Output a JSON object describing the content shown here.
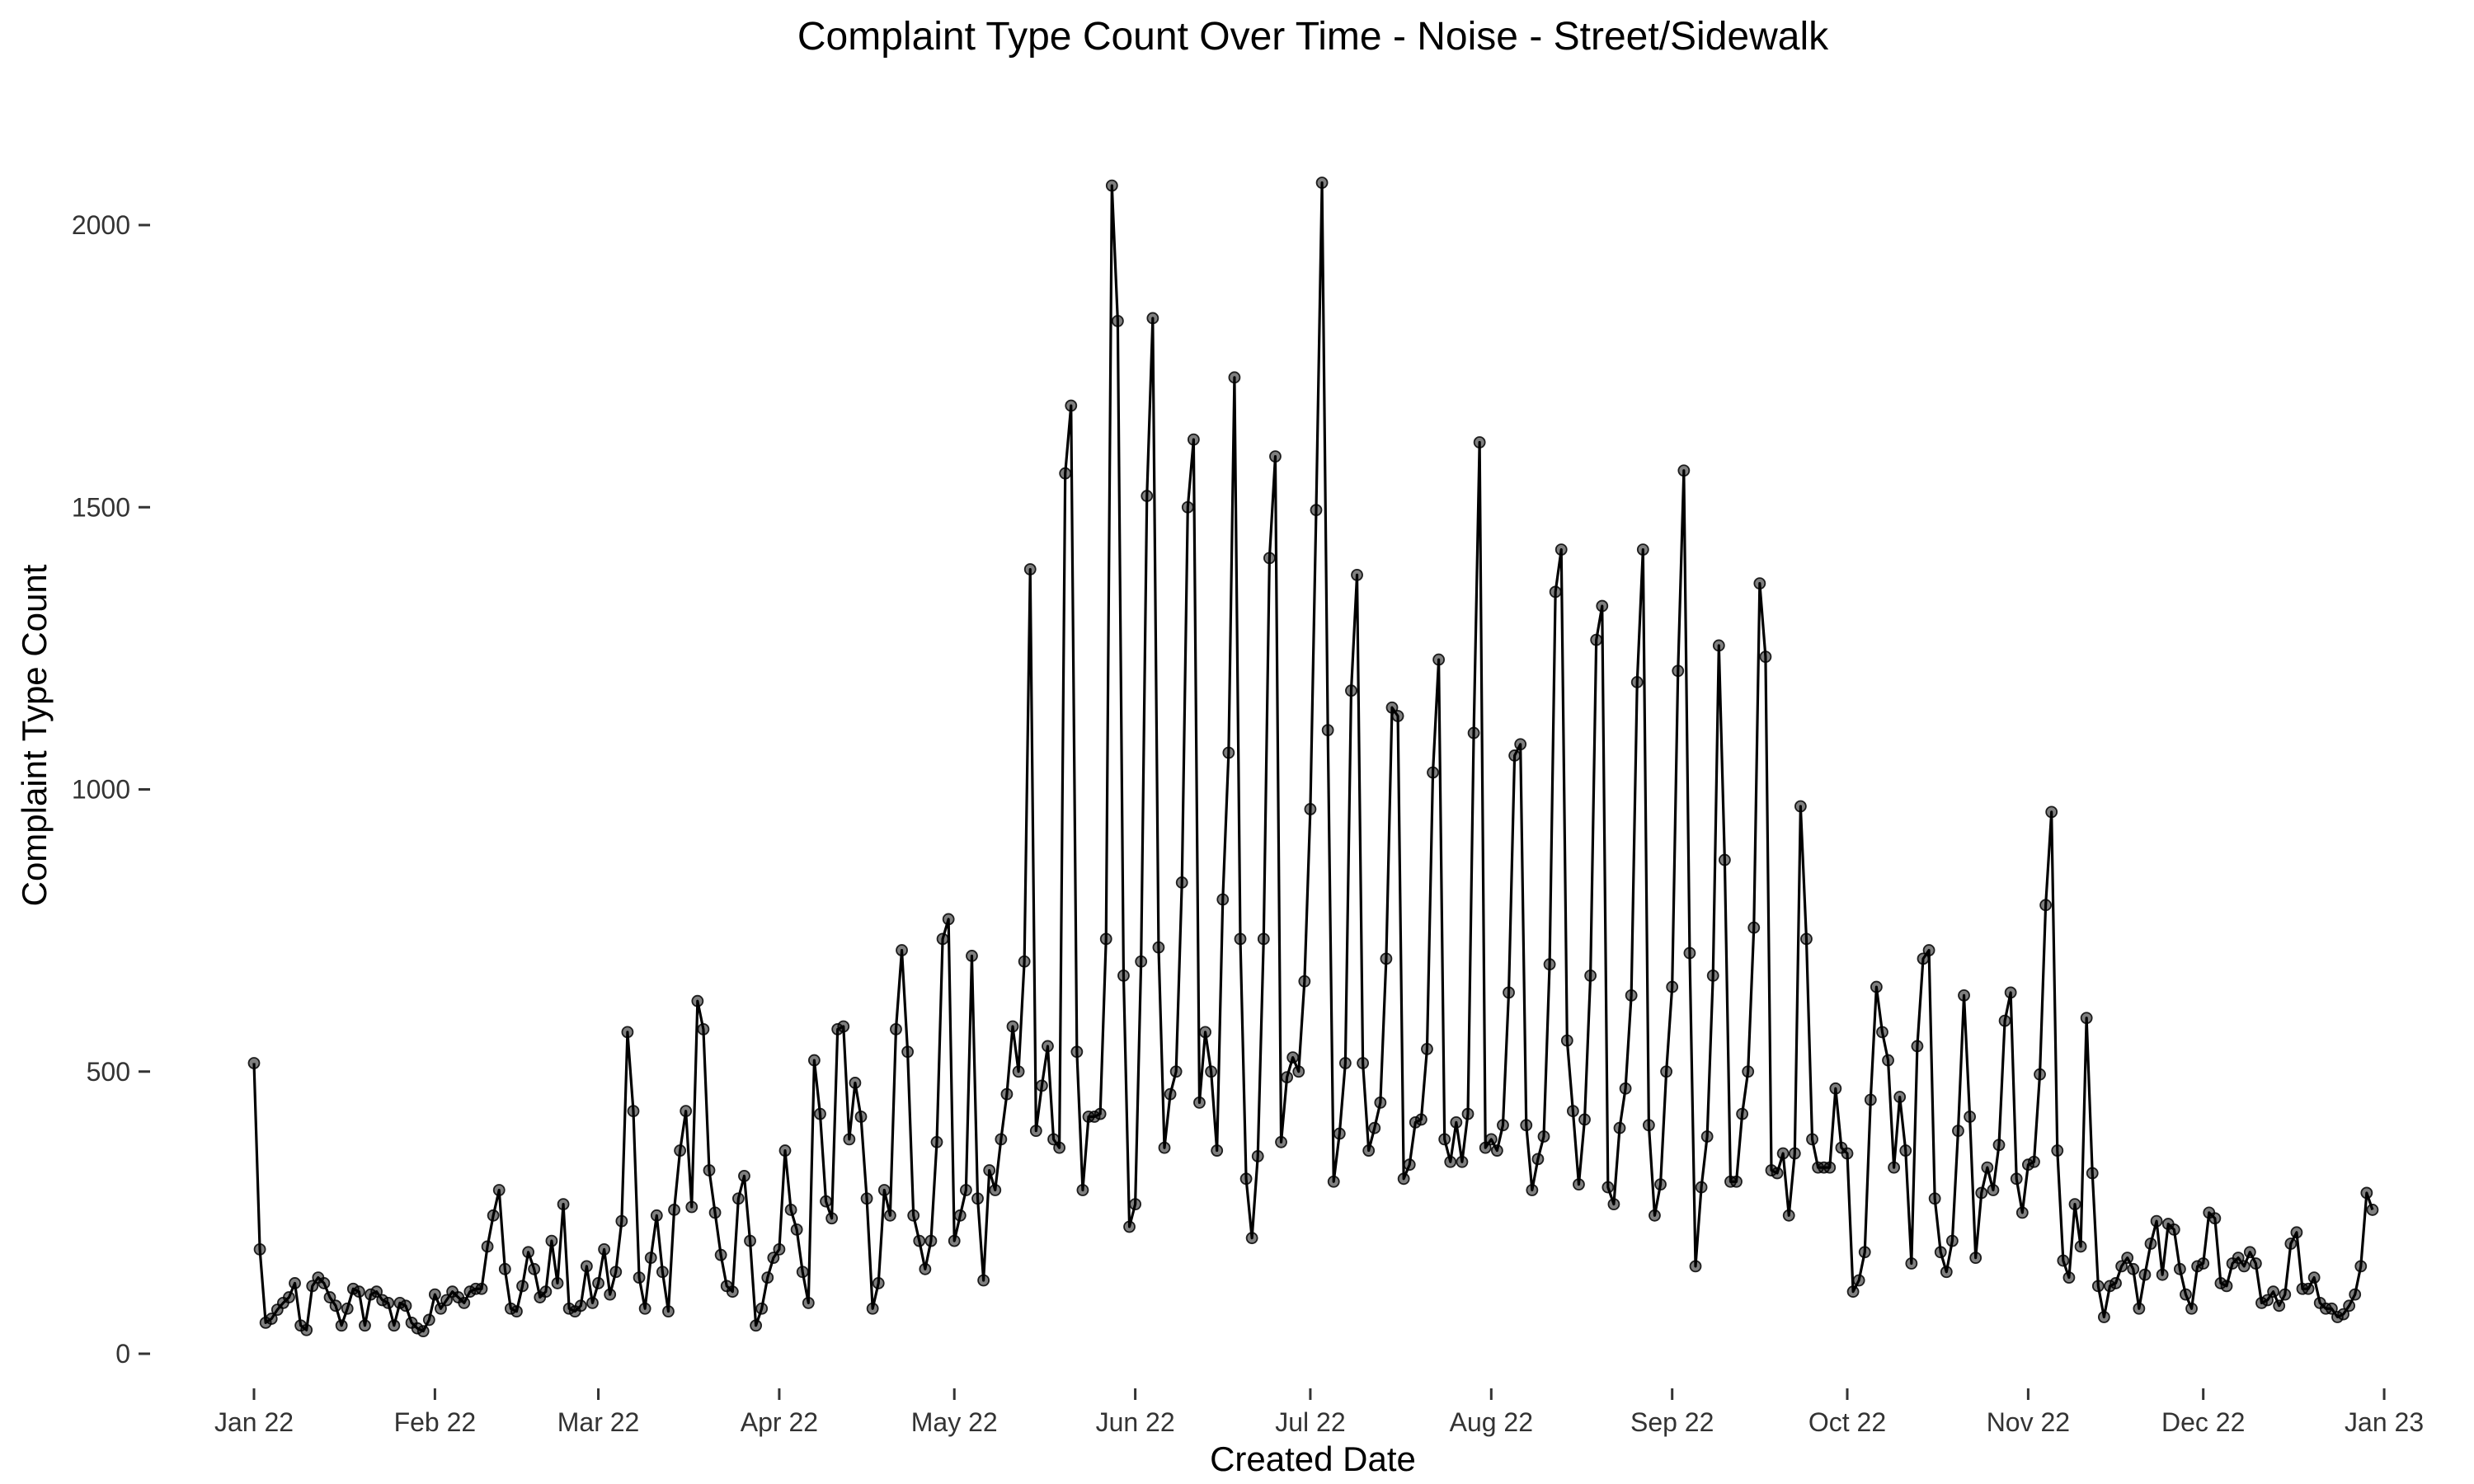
{
  "chart_data": {
    "type": "line",
    "title": "Complaint Type Count Over Time - Noise - Street/Sidewalk",
    "xlabel": "Created Date",
    "ylabel": "Complaint Type Count",
    "xlim": [
      "2022-01-01",
      "2022-12-31"
    ],
    "ylim": [
      0,
      2100
    ],
    "grid": false,
    "legend": "none",
    "colors": {
      "line": "#000000",
      "point": "#555555"
    },
    "x_ticks": [
      {
        "date": "2022-01-01",
        "label": "Jan 22"
      },
      {
        "date": "2022-02-01",
        "label": "Feb 22"
      },
      {
        "date": "2022-03-01",
        "label": "Mar 22"
      },
      {
        "date": "2022-04-01",
        "label": "Apr 22"
      },
      {
        "date": "2022-05-01",
        "label": "May 22"
      },
      {
        "date": "2022-06-01",
        "label": "Jun 22"
      },
      {
        "date": "2022-07-01",
        "label": "Jul 22"
      },
      {
        "date": "2022-08-01",
        "label": "Aug 22"
      },
      {
        "date": "2022-09-01",
        "label": "Sep 22"
      },
      {
        "date": "2022-10-01",
        "label": "Oct 22"
      },
      {
        "date": "2022-11-01",
        "label": "Nov 22"
      },
      {
        "date": "2022-12-01",
        "label": "Dec 22"
      },
      {
        "date": "2023-01-01",
        "label": "Jan 23"
      }
    ],
    "y_ticks": [
      {
        "value": 0,
        "label": "0"
      },
      {
        "value": 500,
        "label": "500"
      },
      {
        "value": 1000,
        "label": "1000"
      },
      {
        "value": 1500,
        "label": "1500"
      },
      {
        "value": 2000,
        "label": "2000"
      }
    ],
    "x_start": "2022-01-01",
    "x_step": "1 day",
    "values": [
      515,
      185,
      55,
      62,
      78,
      90,
      100,
      125,
      50,
      42,
      120,
      135,
      125,
      100,
      85,
      50,
      80,
      115,
      110,
      50,
      105,
      110,
      95,
      90,
      50,
      90,
      85,
      55,
      45,
      40,
      60,
      105,
      80,
      95,
      110,
      100,
      90,
      110,
      115,
      115,
      190,
      245,
      290,
      150,
      80,
      75,
      120,
      180,
      150,
      100,
      110,
      200,
      125,
      265,
      80,
      75,
      85,
      155,
      90,
      125,
      185,
      105,
      145,
      235,
      570,
      430,
      135,
      80,
      170,
      245,
      145,
      75,
      255,
      360,
      430,
      260,
      625,
      575,
      325,
      250,
      175,
      120,
      110,
      275,
      315,
      200,
      50,
      80,
      135,
      170,
      185,
      360,
      255,
      220,
      145,
      90,
      520,
      425,
      270,
      240,
      575,
      580,
      380,
      480,
      420,
      275,
      80,
      125,
      290,
      245,
      575,
      715,
      535,
      245,
      200,
      150,
      200,
      375,
      735,
      770,
      200,
      245,
      290,
      705,
      275,
      130,
      325,
      290,
      380,
      460,
      580,
      500,
      695,
      1390,
      395,
      475,
      545,
      380,
      365,
      1560,
      1680,
      535,
      290,
      420,
      420,
      425,
      735,
      2070,
      1830,
      670,
      225,
      265,
      695,
      1520,
      1835,
      720,
      365,
      460,
      500,
      835,
      1500,
      1620,
      445,
      570,
      500,
      360,
      805,
      1065,
      1730,
      735,
      310,
      205,
      350,
      735,
      1410,
      1590,
      375,
      490,
      525,
      500,
      660,
      965,
      1495,
      2075,
      1105,
      305,
      390,
      515,
      1175,
      1380,
      515,
      360,
      400,
      445,
      700,
      1145,
      1130,
      310,
      335,
      410,
      415,
      540,
      1030,
      1230,
      380,
      340,
      410,
      340,
      425,
      1100,
      1615,
      365,
      380,
      360,
      405,
      640,
      1060,
      1080,
      405,
      290,
      345,
      385,
      690,
      1350,
      1425,
      555,
      430,
      300,
      415,
      670,
      1265,
      1325,
      295,
      265,
      400,
      470,
      635,
      1190,
      1425,
      405,
      245,
      300,
      500,
      650,
      1210,
      1565,
      710,
      155,
      295,
      385,
      670,
      1255,
      875,
      305,
      305,
      425,
      500,
      755,
      1365,
      1235,
      325,
      320,
      355,
      245,
      355,
      970,
      735,
      380,
      330,
      330,
      330,
      470,
      365,
      355,
      110,
      130,
      180,
      450,
      650,
      570,
      520,
      330,
      455,
      360,
      160,
      545,
      700,
      715,
      275,
      180,
      145,
      200,
      395,
      635,
      420,
      170,
      285,
      330,
      290,
      370,
      590,
      640,
      310,
      250,
      335,
      340,
      495,
      795,
      960,
      360,
      165,
      135,
      265,
      190,
      595,
      320,
      120,
      65,
      120,
      125,
      155,
      170,
      150,
      80,
      140,
      195,
      235,
      140,
      230,
      220,
      150,
      105,
      80,
      155,
      160,
      250,
      240,
      125,
      120,
      160,
      170,
      155,
      180,
      160,
      90,
      95,
      110,
      85,
      105,
      195,
      215,
      115,
      115,
      135,
      90,
      80,
      80,
      65,
      70,
      85,
      105,
      155,
      285,
      255
    ]
  }
}
